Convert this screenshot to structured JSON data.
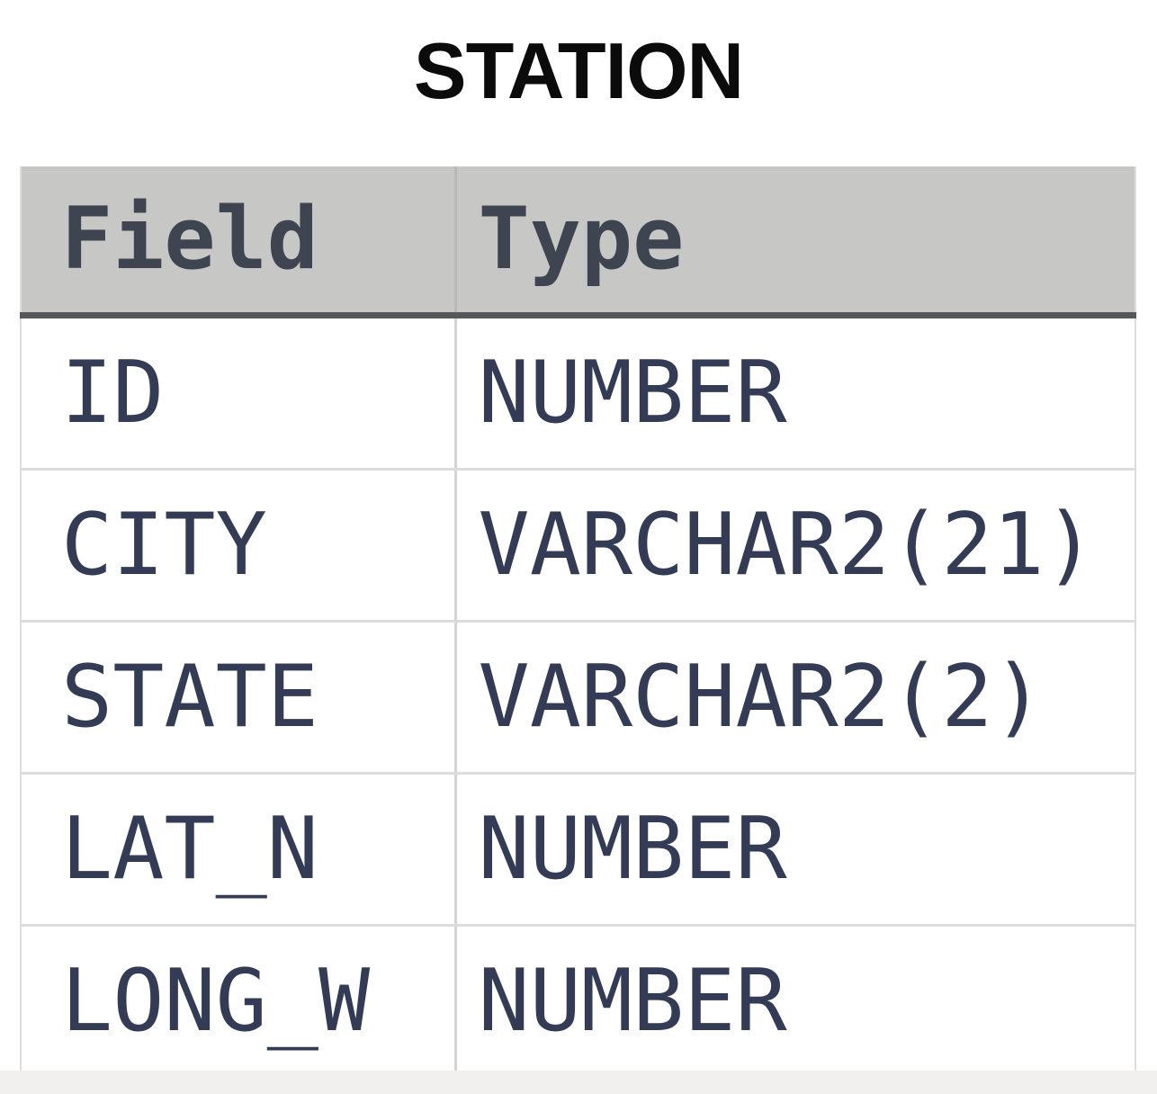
{
  "title": "STATION",
  "chart_data": {
    "type": "table",
    "title": "STATION",
    "columns": [
      "Field",
      "Type"
    ],
    "rows": [
      [
        "ID",
        "NUMBER"
      ],
      [
        "CITY",
        "VARCHAR2(21)"
      ],
      [
        "STATE",
        "VARCHAR2(2)"
      ],
      [
        "LAT_N",
        "NUMBER"
      ],
      [
        "LONG_W",
        "NUMBER"
      ]
    ]
  },
  "colors": {
    "title_text": "#0b0b0b",
    "header_bg": "#c7c7c5",
    "header_text": "#3e4450",
    "header_bottom_border": "#55575a",
    "cell_text": "#343c55",
    "row_divider": "#dcdcdc",
    "column_divider": "#d4d4d4",
    "table_outer_border": "#dedede",
    "bottom_strip": "#f1f0ee"
  }
}
